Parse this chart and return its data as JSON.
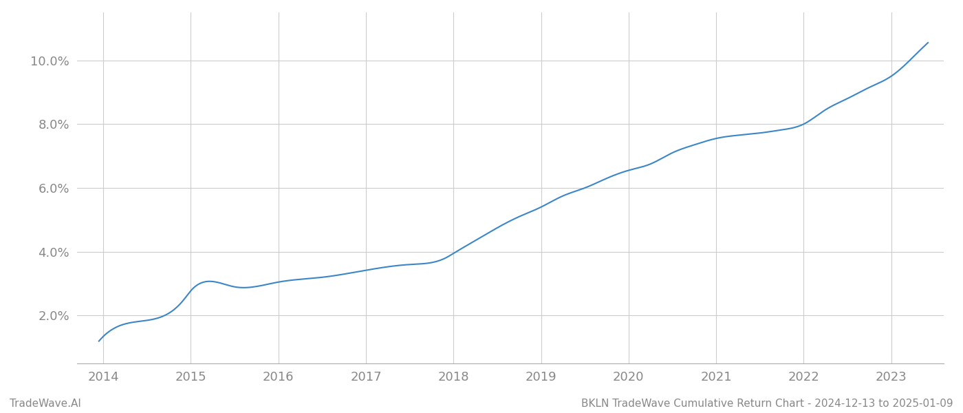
{
  "title": "BKLN TradeWave Cumulative Return Chart - 2024-12-13 to 2025-01-09",
  "watermark": "TradeWave.AI",
  "line_color": "#3a86c8",
  "background_color": "#ffffff",
  "grid_color": "#cccccc",
  "x_years": [
    2014,
    2015,
    2016,
    2017,
    2018,
    2019,
    2020,
    2021,
    2022,
    2023
  ],
  "key_x": [
    2013.95,
    2014.5,
    2014.92,
    2015.0,
    2015.5,
    2016.0,
    2016.5,
    2017.0,
    2017.5,
    2017.92,
    2018.0,
    2018.25,
    2018.5,
    2018.75,
    2019.0,
    2019.25,
    2019.5,
    2019.75,
    2020.0,
    2020.25,
    2020.5,
    2020.75,
    2021.0,
    2021.25,
    2021.5,
    2021.75,
    2022.0,
    2022.25,
    2022.5,
    2022.75,
    2023.0,
    2023.25,
    2023.42
  ],
  "key_y": [
    1.2,
    1.85,
    2.5,
    2.78,
    2.9,
    3.05,
    3.2,
    3.42,
    3.6,
    3.82,
    3.95,
    4.35,
    4.75,
    5.1,
    5.4,
    5.75,
    6.0,
    6.3,
    6.55,
    6.75,
    7.1,
    7.35,
    7.55,
    7.65,
    7.72,
    7.82,
    8.0,
    8.45,
    8.8,
    9.15,
    9.5,
    10.1,
    10.55
  ],
  "ylim": [
    0.5,
    11.5
  ],
  "xlim": [
    2013.7,
    2023.6
  ],
  "yticks": [
    2.0,
    4.0,
    6.0,
    8.0,
    10.0
  ],
  "tick_color": "#888888",
  "tick_fontsize": 13,
  "title_fontsize": 11,
  "watermark_fontsize": 11,
  "line_width": 1.5,
  "spine_color": "#aaaaaa"
}
